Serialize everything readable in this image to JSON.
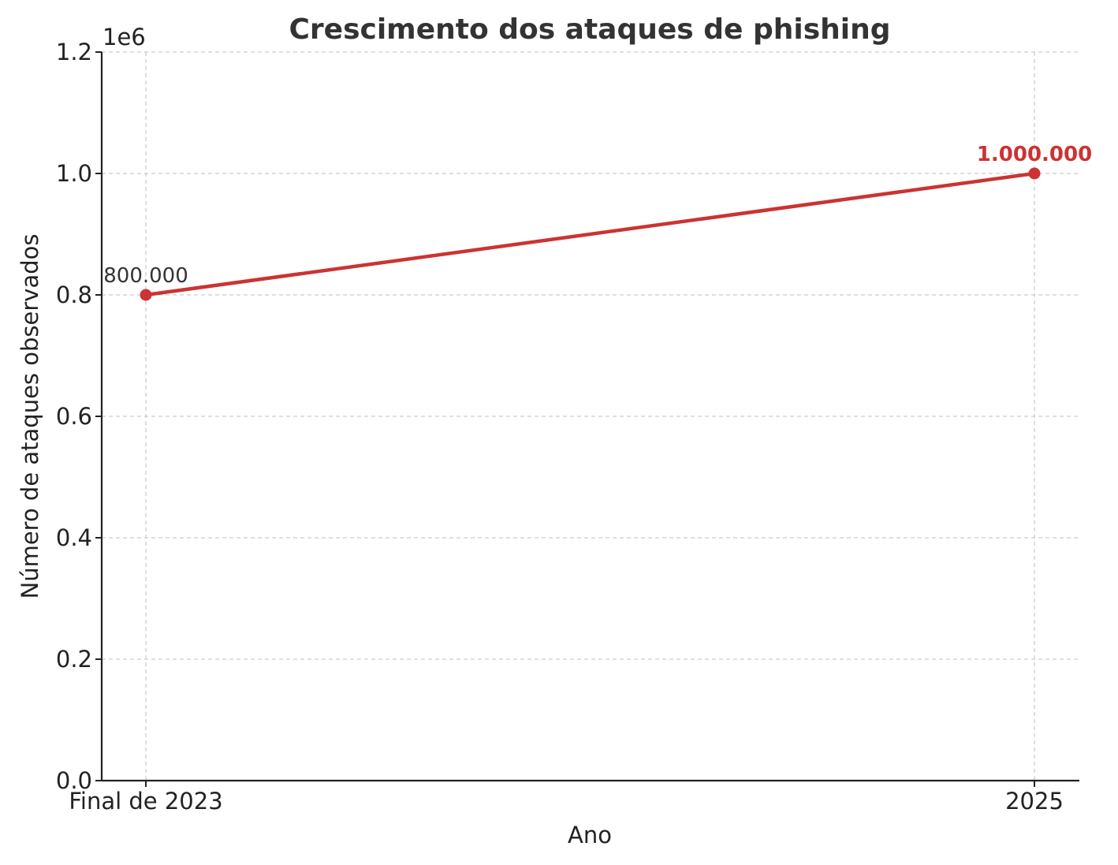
{
  "chart_data": {
    "type": "line",
    "title": "Crescimento dos ataques de phishing",
    "xlabel": "Ano",
    "ylabel": "Número de ataques observados",
    "y_offset_text": "1e6",
    "categories": [
      "Final de 2023",
      "2025"
    ],
    "series": [
      {
        "values": [
          800000,
          1000000
        ],
        "color": "#cc3333"
      }
    ],
    "data_labels": [
      {
        "text": "800.000",
        "color": "#333333",
        "bold": false
      },
      {
        "text": "1.000.000",
        "color": "#cc3333",
        "bold": true
      }
    ],
    "ylim": [
      0,
      1200000
    ],
    "yticks": [
      0,
      200000,
      400000,
      600000,
      800000,
      1000000,
      1200000
    ],
    "ytick_labels": [
      "0.0",
      "0.2",
      "0.4",
      "0.6",
      "0.8",
      "1.0",
      "1.2"
    ],
    "grid": true,
    "legend": "none"
  }
}
